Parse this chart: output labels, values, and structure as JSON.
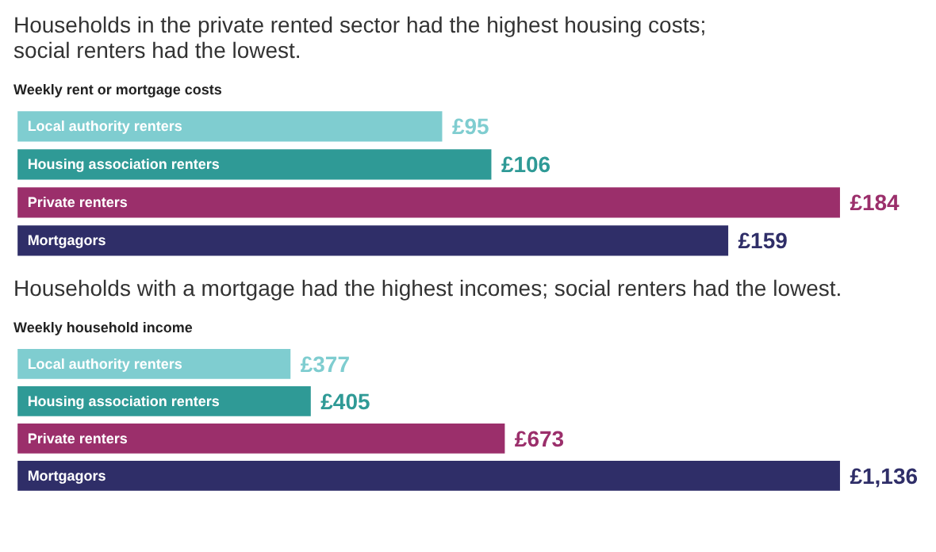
{
  "chart_data": [
    {
      "type": "bar",
      "orientation": "horizontal",
      "title": "Households in the private rented sector had the highest housing costs;\nsocial renters had the lowest.",
      "subtitle": "Weekly rent or mortgage costs",
      "categories": [
        "Local authority renters",
        "Housing association renters",
        "Private renters",
        "Mortgagors"
      ],
      "values": [
        95,
        106,
        184,
        159
      ],
      "value_labels": [
        "£95",
        "£106",
        "£184",
        "£159"
      ],
      "colors": [
        "#7fcdd0",
        "#2f9a96",
        "#9b2f6b",
        "#2f2e68"
      ]
    },
    {
      "type": "bar",
      "orientation": "horizontal",
      "title": "Households with a mortgage had the highest incomes; social renters had the lowest.",
      "subtitle": "Weekly household income",
      "categories": [
        "Local authority renters",
        "Housing association renters",
        "Private renters",
        "Mortgagors"
      ],
      "values": [
        377,
        405,
        673,
        1136
      ],
      "value_labels": [
        "£377",
        "£405",
        "£673",
        "£1,136"
      ],
      "colors": [
        "#7fcdd0",
        "#2f9a96",
        "#9b2f6b",
        "#2f2e68"
      ]
    }
  ]
}
